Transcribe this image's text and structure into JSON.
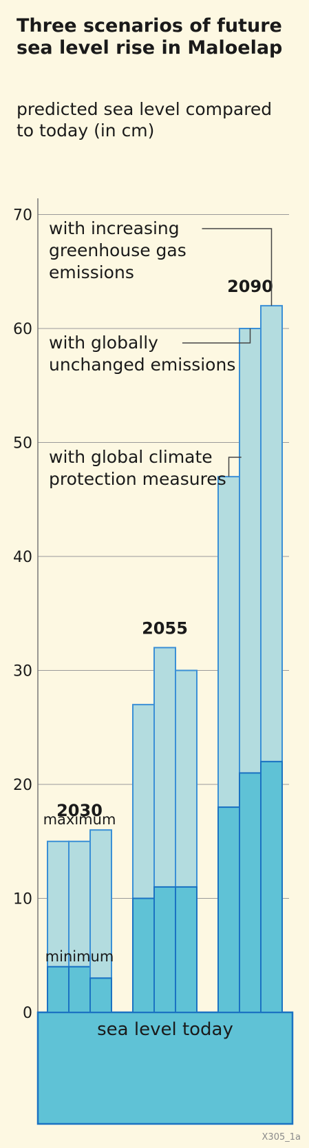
{
  "header": {
    "title": "Three scenarios of future sea level rise in Maloelap",
    "subtitle": "predicted sea level compared to today (in cm)"
  },
  "chart_data": {
    "type": "bar",
    "title": "Three scenarios of future sea level rise in Maloelap",
    "subtitle": "predicted sea level compared to today (in cm)",
    "ylim": [
      0,
      70
    ],
    "y_ticks": [
      0,
      10,
      20,
      30,
      40,
      50,
      60,
      70
    ],
    "grid": true,
    "scenarios": [
      "with global climate protection measures",
      "with globally unchanged emissions",
      "with increasing greenhouse gas emissions"
    ],
    "range_labels": {
      "max": "maximum",
      "min": "minimum"
    },
    "groups": [
      {
        "year": "2030",
        "min": [
          4,
          4,
          3
        ],
        "max": [
          15,
          15,
          16
        ]
      },
      {
        "year": "2055",
        "min": [
          10,
          11,
          11
        ],
        "max": [
          27,
          32,
          30
        ]
      },
      {
        "year": "2090",
        "min": [
          18,
          21,
          22
        ],
        "max": [
          47,
          60,
          62
        ]
      }
    ],
    "baseline_label": "sea level today",
    "colors": {
      "max_fill": "#b3dcdf",
      "min_fill": "#5fc2d6",
      "stroke": "#3a8fd6",
      "base_fill": "#5fc2d6",
      "base_stroke": "#1a72c2",
      "grid": "#999999"
    }
  },
  "source_code": "X305_1a"
}
